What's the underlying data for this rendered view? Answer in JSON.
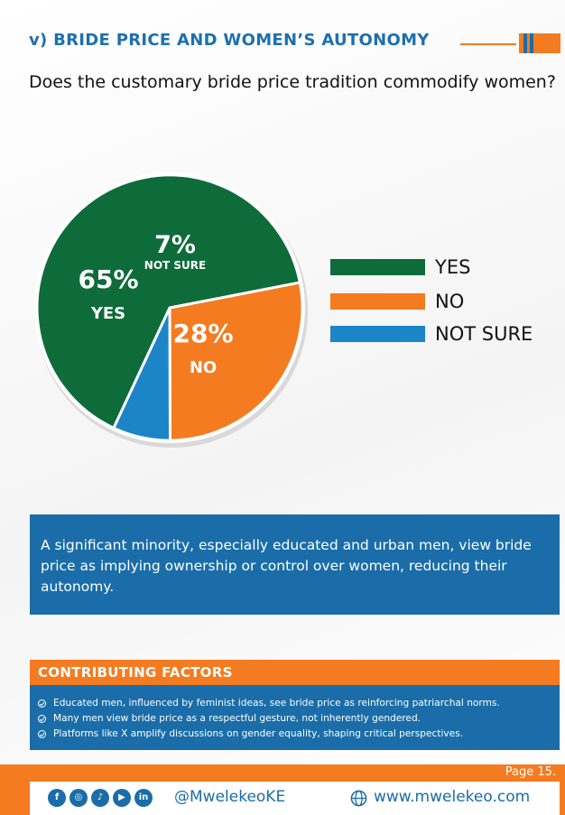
{
  "header": {
    "title": "v) BRIDE PRICE AND WOMEN’S AUTONOMY",
    "question": "Does the customary bride price tradition commodify women?",
    "accent_colors": [
      "#f47b20",
      "#1a6da8"
    ]
  },
  "chart_data": {
    "type": "pie",
    "categories": [
      "YES",
      "NO",
      "NOT SURE"
    ],
    "values": [
      65,
      28,
      7
    ],
    "value_labels": [
      "65%",
      "28%",
      "7%"
    ],
    "colors": [
      "#0e6b3a",
      "#f47b20",
      "#1b85c8"
    ],
    "legend": {
      "position": "right",
      "items": [
        "YES",
        "NO",
        "NOT SURE"
      ]
    }
  },
  "finding": {
    "text": "A significant minority, especially educated and urban men, view bride price as implying ownership or control over women, reducing their autonomy."
  },
  "factors": {
    "heading": "CONTRIBUTING FACTORS",
    "items": [
      "Educated men, influenced by feminist ideas, see bride price as reinforcing patriarchal norms.",
      "Many men view bride price as a respectful gesture, not inherently gendered.",
      "Platforms like X amplify discussions on gender equality, shaping critical perspectives."
    ]
  },
  "footer": {
    "page": "Page 15.",
    "handle": "@MwelekeoKE",
    "website": "www.mwelekeo.com",
    "social_icons": [
      "facebook-icon",
      "instagram-icon",
      "tiktok-icon",
      "youtube-icon",
      "linkedin-icon"
    ],
    "social_glyphs": [
      "f",
      "◎",
      "♪",
      "▶",
      "in"
    ]
  }
}
